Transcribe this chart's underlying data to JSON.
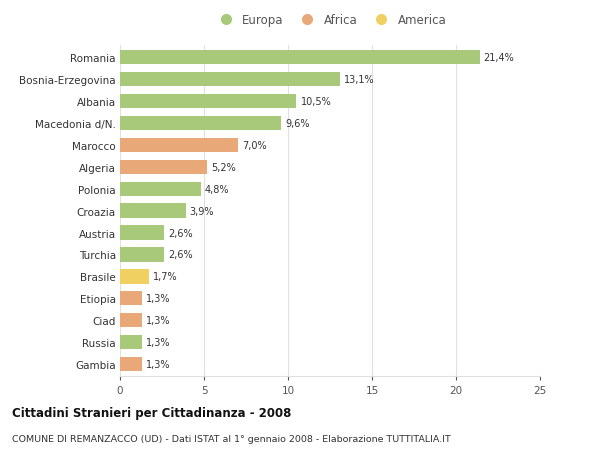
{
  "categories": [
    "Romania",
    "Bosnia-Erzegovina",
    "Albania",
    "Macedonia d/N.",
    "Marocco",
    "Algeria",
    "Polonia",
    "Croazia",
    "Austria",
    "Turchia",
    "Brasile",
    "Etiopia",
    "Ciad",
    "Russia",
    "Gambia"
  ],
  "values": [
    21.4,
    13.1,
    10.5,
    9.6,
    7.0,
    5.2,
    4.8,
    3.9,
    2.6,
    2.6,
    1.7,
    1.3,
    1.3,
    1.3,
    1.3
  ],
  "labels": [
    "21,4%",
    "13,1%",
    "10,5%",
    "9,6%",
    "7,0%",
    "5,2%",
    "4,8%",
    "3,9%",
    "2,6%",
    "2,6%",
    "1,7%",
    "1,3%",
    "1,3%",
    "1,3%",
    "1,3%"
  ],
  "continents": [
    "Europa",
    "Europa",
    "Europa",
    "Europa",
    "Africa",
    "Africa",
    "Europa",
    "Europa",
    "Europa",
    "Europa",
    "America",
    "Africa",
    "Africa",
    "Europa",
    "Africa"
  ],
  "colors": {
    "Europa": "#a8c87a",
    "Africa": "#e8a878",
    "America": "#f0d060"
  },
  "title": "Cittadini Stranieri per Cittadinanza - 2008",
  "subtitle": "COMUNE DI REMANZACCO (UD) - Dati ISTAT al 1° gennaio 2008 - Elaborazione TUTTITALIA.IT",
  "xlim": [
    0,
    25
  ],
  "background_color": "#ffffff",
  "grid_color": "#e0e0e0",
  "bar_height": 0.65
}
